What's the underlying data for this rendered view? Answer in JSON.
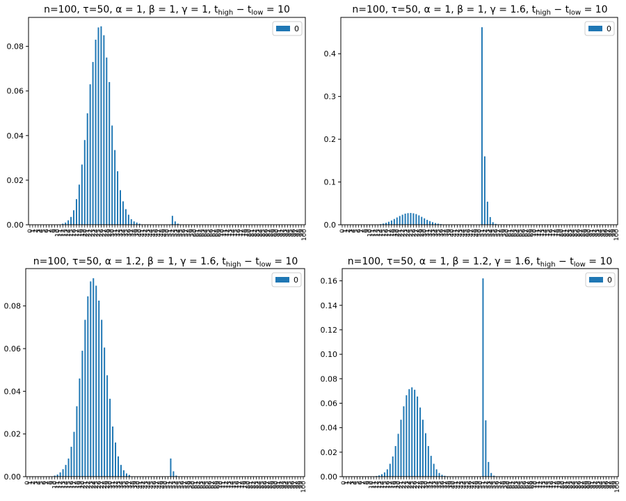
{
  "colors": {
    "bar": "#1f77b4",
    "axis": "#000000",
    "legend_border": "#cccccc"
  },
  "chart_data": [
    {
      "type": "bar",
      "title": "n=100, τ=50, α = 1, β = 1, γ = 1, t_high − t_low = 10",
      "legend": [
        "0"
      ],
      "legend_position": "top-right",
      "grid": false,
      "x_ticks_rotated": true,
      "ylim": [
        0,
        0.093
      ],
      "yticks": [
        "0.00",
        "0.02",
        "0.04",
        "0.06",
        "0.08"
      ],
      "categories_start": 0,
      "categories_end": 100,
      "series": [
        {
          "values": [
            0,
            0,
            0,
            0,
            0,
            0,
            0,
            0,
            0,
            0,
            0,
            0,
            0.0005,
            0.001,
            0.002,
            0.0035,
            0.0065,
            0.0115,
            0.018,
            0.027,
            0.038,
            0.05,
            0.063,
            0.073,
            0.083,
            0.0885,
            0.089,
            0.085,
            0.075,
            0.064,
            0.0445,
            0.0335,
            0.024,
            0.0155,
            0.0105,
            0.007,
            0.0045,
            0.0025,
            0.0015,
            0.001,
            0.0005,
            0,
            0,
            0,
            0,
            0,
            0,
            0,
            0,
            0,
            0,
            0,
            0.004,
            0.0015,
            0.0005,
            0,
            0,
            0,
            0,
            0,
            0,
            0,
            0,
            0,
            0,
            0,
            0,
            0,
            0,
            0,
            0,
            0,
            0,
            0,
            0,
            0,
            0,
            0,
            0,
            0,
            0,
            0,
            0,
            0,
            0,
            0,
            0,
            0,
            0,
            0,
            0,
            0,
            0,
            0,
            0,
            0,
            0,
            0,
            0,
            0,
            0
          ]
        }
      ]
    },
    {
      "type": "bar",
      "title": "n=100, τ=50, α = 1, β = 1, γ = 1.6, t_high − t_low = 10",
      "legend": [
        "0"
      ],
      "legend_position": "top-right",
      "grid": false,
      "x_ticks_rotated": true,
      "ylim": [
        0,
        0.485
      ],
      "yticks": [
        "0.0",
        "0.1",
        "0.2",
        "0.3",
        "0.4"
      ],
      "categories_start": 0,
      "categories_end": 100,
      "series": [
        {
          "values": [
            0,
            0,
            0,
            0,
            0,
            0,
            0,
            0,
            0,
            0,
            0,
            0,
            0.0003,
            0.0008,
            0.0015,
            0.0028,
            0.0045,
            0.007,
            0.01,
            0.0135,
            0.017,
            0.0205,
            0.0235,
            0.026,
            0.0272,
            0.0276,
            0.0268,
            0.025,
            0.022,
            0.0185,
            0.015,
            0.0115,
            0.0085,
            0.006,
            0.004,
            0.0025,
            0.0015,
            0.0008,
            0.0004,
            0.0002,
            0.0001,
            0,
            0,
            0,
            0,
            0,
            0,
            0,
            0,
            0,
            0,
            0.462,
            0.16,
            0.054,
            0.018,
            0.006,
            0.002,
            0.0005,
            0,
            0,
            0,
            0,
            0,
            0,
            0,
            0,
            0,
            0,
            0,
            0,
            0,
            0,
            0,
            0,
            0,
            0,
            0,
            0,
            0,
            0,
            0,
            0,
            0,
            0,
            0,
            0,
            0,
            0,
            0,
            0,
            0,
            0,
            0,
            0,
            0,
            0,
            0,
            0,
            0,
            0,
            0
          ]
        }
      ]
    },
    {
      "type": "bar",
      "title": "n=100, τ=50, α = 1.2, β = 1, γ = 1.6, t_high − t_low = 10",
      "legend": [
        "0"
      ],
      "legend_position": "top-right",
      "grid": false,
      "x_ticks_rotated": true,
      "ylim": [
        0,
        0.0975
      ],
      "yticks": [
        "0.00",
        "0.02",
        "0.04",
        "0.06",
        "0.08"
      ],
      "categories_start": 0,
      "categories_end": 100,
      "series": [
        {
          "values": [
            0,
            0,
            0,
            0,
            0,
            0,
            0,
            0,
            0,
            0,
            0.0005,
            0.001,
            0.002,
            0.0035,
            0.0055,
            0.0085,
            0.014,
            0.021,
            0.033,
            0.046,
            0.059,
            0.0735,
            0.0845,
            0.0915,
            0.093,
            0.0895,
            0.0825,
            0.0735,
            0.0605,
            0.0475,
            0.0365,
            0.0235,
            0.016,
            0.0095,
            0.0055,
            0.003,
            0.0015,
            0.0008,
            0,
            0,
            0,
            0,
            0,
            0,
            0,
            0,
            0,
            0,
            0,
            0,
            0,
            0,
            0.0085,
            0.0025,
            0.0005,
            0,
            0,
            0,
            0,
            0,
            0,
            0,
            0,
            0,
            0,
            0,
            0,
            0,
            0,
            0,
            0,
            0,
            0,
            0,
            0,
            0,
            0,
            0,
            0,
            0,
            0,
            0,
            0,
            0,
            0,
            0,
            0,
            0,
            0,
            0,
            0,
            0,
            0,
            0,
            0,
            0,
            0,
            0,
            0,
            0,
            0
          ]
        }
      ]
    },
    {
      "type": "bar",
      "title": "n=100, τ=50, α = 1, β = 1.2, γ = 1.6, t_high − t_low = 10",
      "legend": [
        "0"
      ],
      "legend_position": "top-right",
      "grid": false,
      "x_ticks_rotated": true,
      "ylim": [
        0,
        0.17
      ],
      "yticks": [
        "0.00",
        "0.02",
        "0.04",
        "0.06",
        "0.08",
        "0.10",
        "0.12",
        "0.14",
        "0.16"
      ],
      "categories_start": 0,
      "categories_end": 100,
      "series": [
        {
          "values": [
            0,
            0,
            0,
            0,
            0,
            0,
            0,
            0,
            0,
            0,
            0,
            0,
            0.0005,
            0.001,
            0.002,
            0.0035,
            0.006,
            0.0105,
            0.0165,
            0.025,
            0.035,
            0.0465,
            0.0575,
            0.0665,
            0.0715,
            0.073,
            0.071,
            0.0655,
            0.0565,
            0.0465,
            0.0355,
            0.025,
            0.017,
            0.0105,
            0.006,
            0.003,
            0.0015,
            0.0007,
            0.0003,
            0,
            0,
            0,
            0,
            0,
            0,
            0,
            0,
            0,
            0,
            0,
            0,
            0.162,
            0.046,
            0.012,
            0.003,
            0.0008,
            0,
            0,
            0,
            0,
            0,
            0,
            0,
            0,
            0,
            0,
            0,
            0,
            0,
            0,
            0,
            0,
            0,
            0,
            0,
            0,
            0,
            0,
            0,
            0,
            0,
            0,
            0,
            0,
            0,
            0,
            0,
            0,
            0,
            0,
            0,
            0,
            0,
            0,
            0,
            0,
            0,
            0,
            0,
            0,
            0
          ]
        }
      ]
    }
  ]
}
